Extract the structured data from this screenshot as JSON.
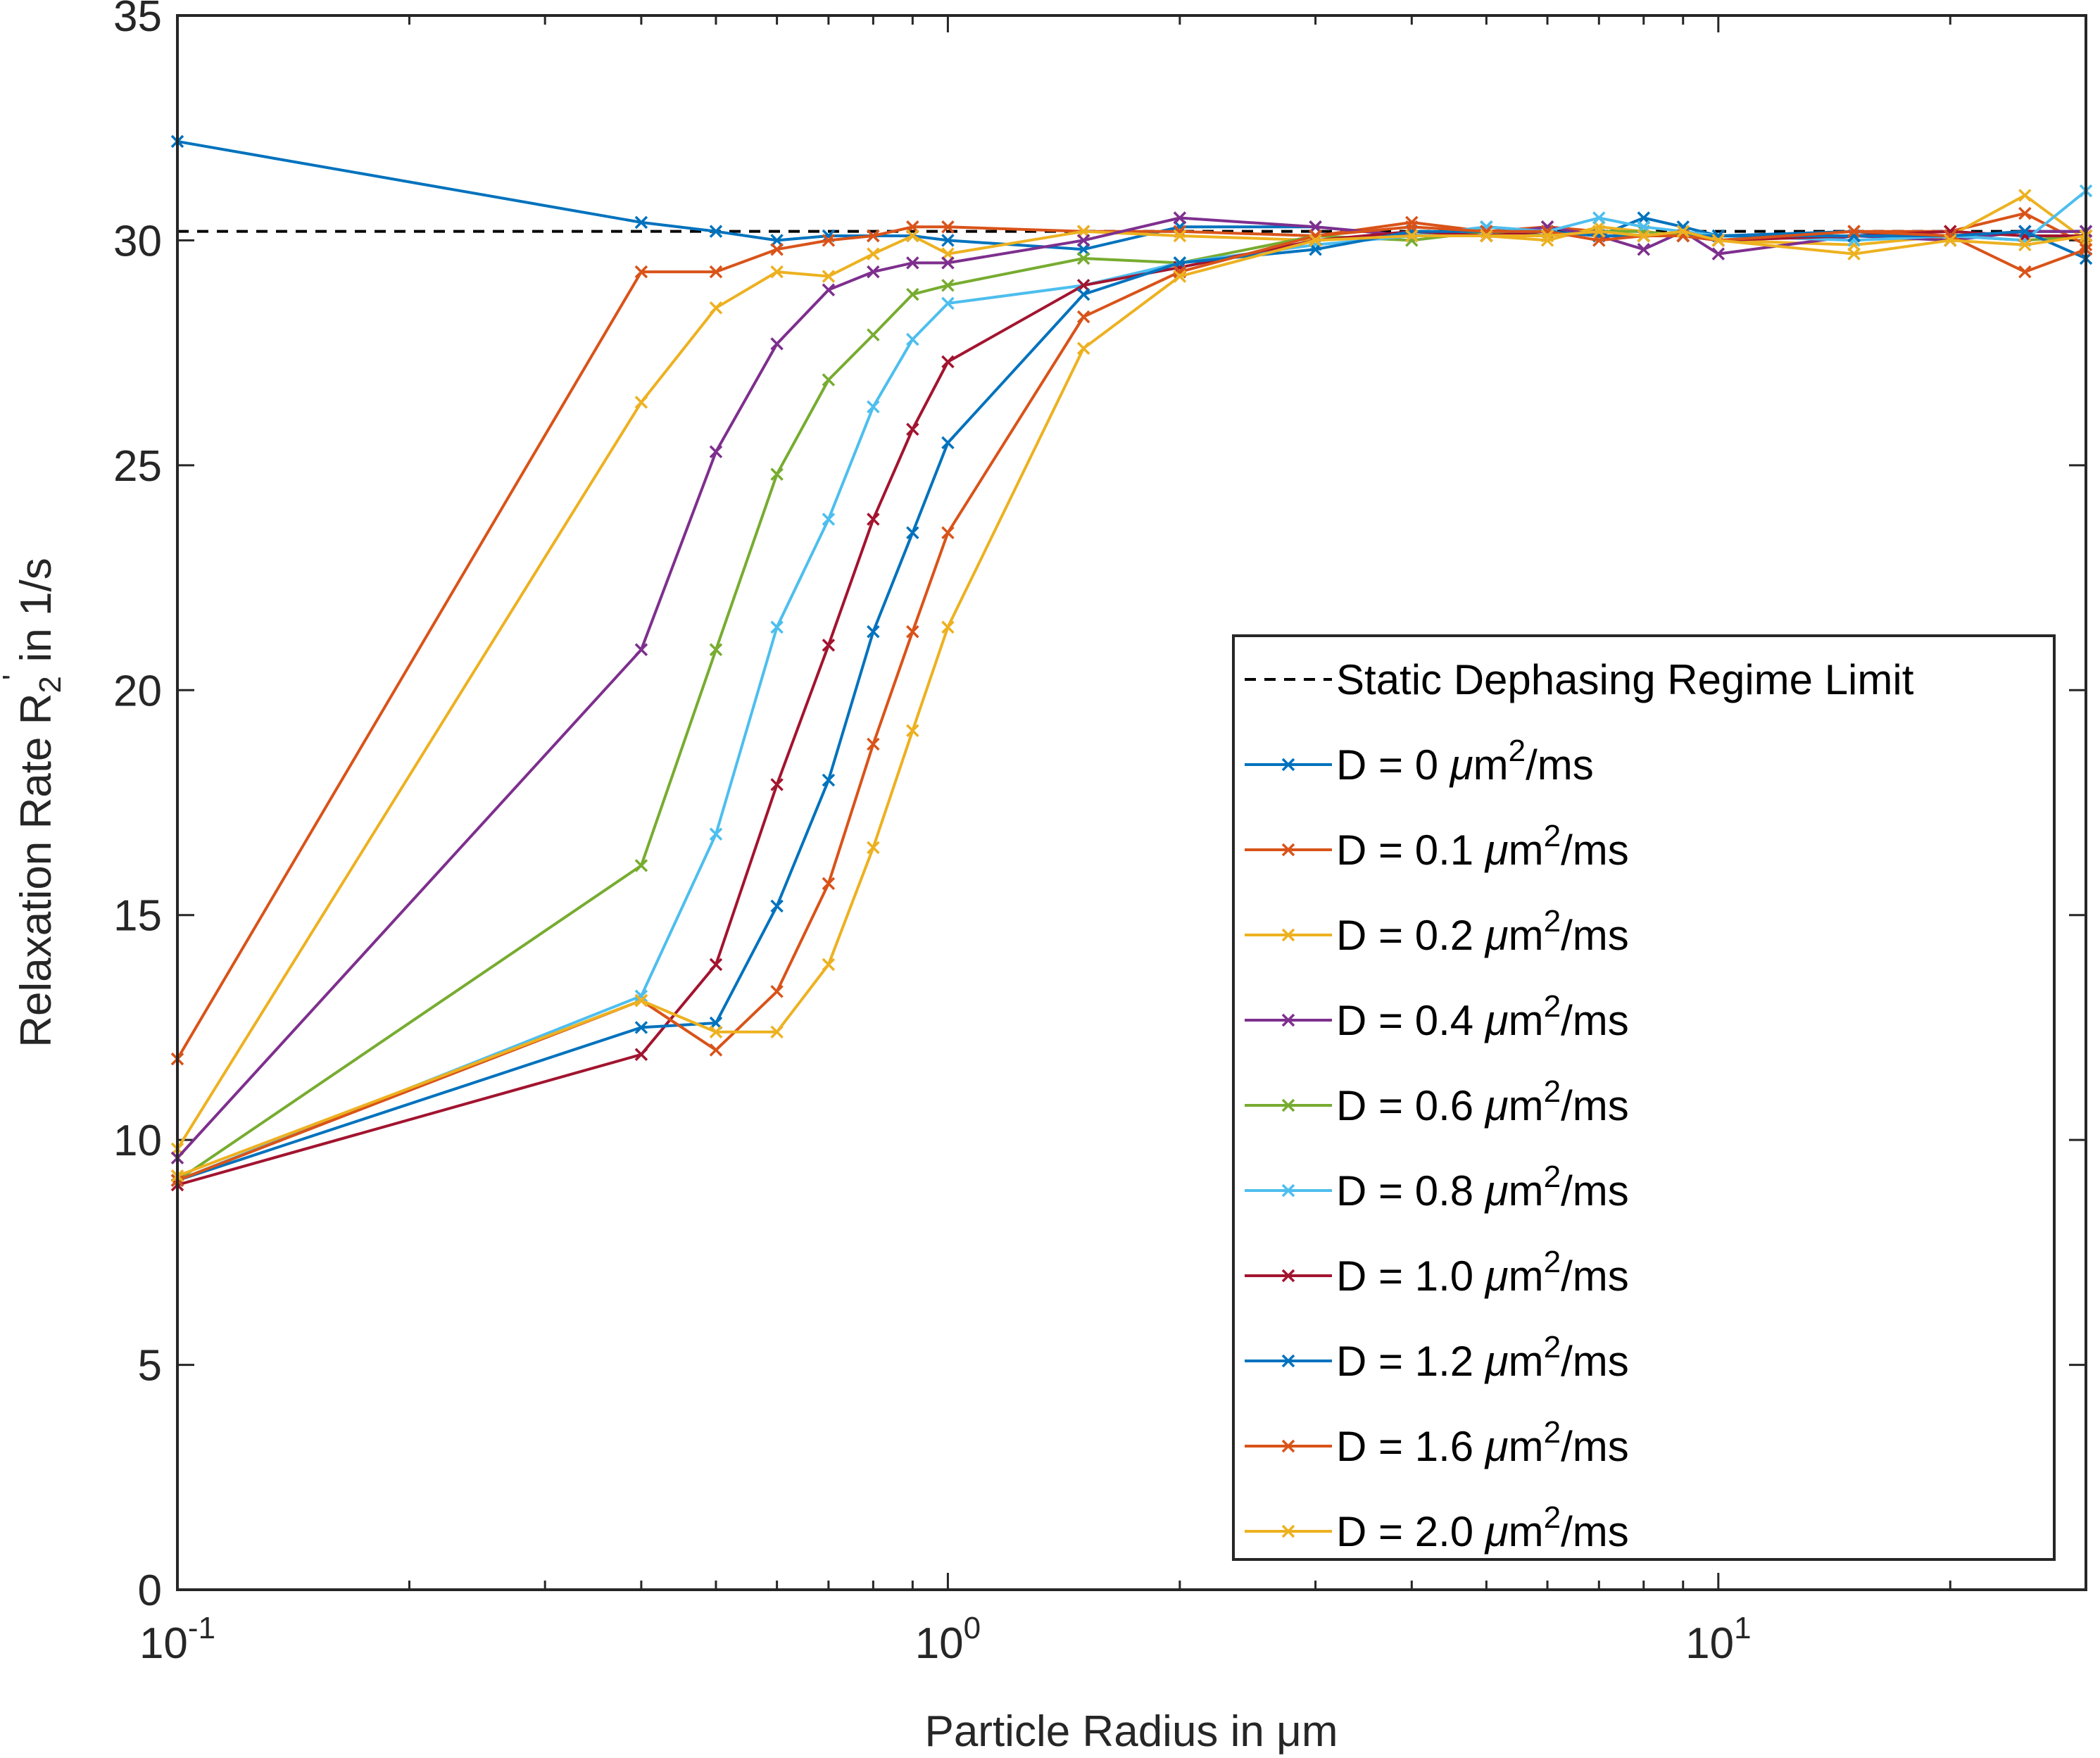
{
  "chart_data": {
    "type": "line",
    "xscale": "log",
    "xlim": [
      0.1,
      30
    ],
    "ylim": [
      0,
      35
    ],
    "xlabel": "Particle Radius in μm",
    "ylabel": "Relaxation Rate R2' in 1/s",
    "ylabel_parts": {
      "main": "Relaxation Rate R",
      "sub": "2",
      "prime": "'",
      "tail": " in 1/s"
    },
    "x_ticks": [
      {
        "value": 0.1,
        "base": "10",
        "exp": "-1"
      },
      {
        "value": 1,
        "base": "10",
        "exp": "0"
      },
      {
        "value": 10,
        "base": "10",
        "exp": "1"
      }
    ],
    "y_ticks": [
      {
        "value": 0,
        "label": "0"
      },
      {
        "value": 5,
        "label": "5"
      },
      {
        "value": 10,
        "label": "10"
      },
      {
        "value": 15,
        "label": "15"
      },
      {
        "value": 20,
        "label": "20"
      },
      {
        "value": 25,
        "label": "25"
      },
      {
        "value": 30,
        "label": "30"
      },
      {
        "value": 35,
        "label": "35"
      }
    ],
    "reference_line": {
      "name": "Static Dephasing Regime Limit",
      "y": 30.2,
      "style": "dashed",
      "color": "#000000"
    },
    "legend_position": "center-right",
    "marker": "x",
    "x": [
      0.1,
      0.4,
      0.5,
      0.6,
      0.7,
      0.8,
      0.9,
      1.0,
      1.5,
      2,
      3,
      4,
      5,
      6,
      7,
      8,
      9,
      10,
      15,
      20,
      25,
      30
    ],
    "series": [
      {
        "name": "D = 0 μm2/ms",
        "label_prefix": "D = 0 ",
        "color": "#0072BD",
        "values": [
          32.2,
          30.4,
          30.2,
          30.0,
          30.1,
          30.1,
          30.1,
          30.0,
          29.8,
          30.3,
          30.3,
          30.1,
          30.3,
          30.2,
          30.1,
          30.5,
          30.3,
          30.1,
          30.2,
          30.0,
          30.2,
          30.2
        ]
      },
      {
        "name": "D = 0.1 μm2/ms",
        "label_prefix": "D = 0.1 ",
        "color": "#D95319",
        "values": [
          11.8,
          29.3,
          29.3,
          29.8,
          30.0,
          30.1,
          30.3,
          30.3,
          30.2,
          30.2,
          30.1,
          30.4,
          30.2,
          30.3,
          30.2,
          30.1,
          30.1,
          30.0,
          30.2,
          30.2,
          30.6,
          29.9
        ]
      },
      {
        "name": "D = 0.2 μm2/ms",
        "label_prefix": "D = 0.2 ",
        "color": "#EDB120",
        "values": [
          9.8,
          26.4,
          28.5,
          29.3,
          29.2,
          29.7,
          30.1,
          29.7,
          30.2,
          30.1,
          30.0,
          30.1,
          30.1,
          30.0,
          30.3,
          30.2,
          30.1,
          30.0,
          29.9,
          30.1,
          31.0,
          30.0
        ]
      },
      {
        "name": "D = 0.4 μm2/ms",
        "label_prefix": "D = 0.4 ",
        "color": "#7E2F8E",
        "values": [
          9.6,
          20.9,
          25.3,
          27.7,
          28.9,
          29.3,
          29.5,
          29.5,
          30.0,
          30.5,
          30.3,
          30.1,
          30.1,
          30.3,
          30.1,
          29.8,
          30.2,
          29.7,
          30.1,
          30.0,
          30.2,
          30.2
        ]
      },
      {
        "name": "D = 0.6 μm2/ms",
        "label_prefix": "D = 0.6 ",
        "color": "#77AC30",
        "values": [
          9.1,
          16.1,
          20.9,
          24.8,
          26.9,
          27.9,
          28.8,
          29.0,
          29.6,
          29.5,
          30.1,
          30.0,
          30.2,
          30.1,
          30.2,
          30.2,
          30.1,
          30.0,
          30.1,
          30.1,
          30.0,
          30.1
        ]
      },
      {
        "name": "D = 0.8 μm2/ms",
        "label_prefix": "D = 0.8 ",
        "color": "#4DBEEE",
        "values": [
          9.1,
          13.2,
          16.8,
          21.4,
          23.8,
          26.3,
          27.8,
          28.6,
          29.0,
          29.5,
          29.9,
          30.1,
          30.3,
          30.2,
          30.5,
          30.3,
          30.2,
          30.1,
          30.0,
          30.1,
          30.0,
          31.1
        ]
      },
      {
        "name": "D = 1.0 μm2/ms",
        "label_prefix": "D = 1.0 ",
        "color": "#A2142F",
        "values": [
          9.0,
          11.9,
          13.9,
          17.9,
          21.0,
          23.8,
          25.8,
          27.3,
          29.0,
          29.4,
          30.0,
          30.2,
          30.1,
          30.2,
          30.1,
          30.1,
          30.1,
          30.0,
          30.1,
          30.2,
          30.1,
          30.1
        ]
      },
      {
        "name": "D = 1.2 μm2/ms",
        "label_prefix": "D = 1.2 ",
        "color": "#0072BD",
        "values": [
          9.1,
          12.5,
          12.6,
          15.2,
          18.0,
          21.3,
          23.5,
          25.5,
          28.8,
          29.5,
          29.8,
          30.2,
          30.2,
          30.2,
          30.1,
          30.1,
          30.1,
          30.1,
          30.1,
          30.1,
          30.2,
          29.6
        ]
      },
      {
        "name": "D = 1.6 μm2/ms",
        "label_prefix": "D = 1.6 ",
        "color": "#D95319",
        "values": [
          9.1,
          13.1,
          12.0,
          13.3,
          15.7,
          18.8,
          21.3,
          23.5,
          28.3,
          29.3,
          30.1,
          30.3,
          30.2,
          30.2,
          30.0,
          30.1,
          30.1,
          30.0,
          30.2,
          30.1,
          29.3,
          29.8
        ]
      },
      {
        "name": "D = 2.0 μm2/ms",
        "label_prefix": "D = 2.0 ",
        "color": "#EDB120",
        "values": [
          9.2,
          13.1,
          12.4,
          12.4,
          13.9,
          16.5,
          19.1,
          21.4,
          27.6,
          29.2,
          30.0,
          30.1,
          30.1,
          30.1,
          30.2,
          30.1,
          30.2,
          30.0,
          29.7,
          30.0,
          29.9,
          30.1
        ]
      }
    ],
    "legend_suffix": {
      "unit_mu": "μ",
      "unit_m": "m",
      "unit_sup": "2",
      "unit_tail": "/ms"
    }
  }
}
